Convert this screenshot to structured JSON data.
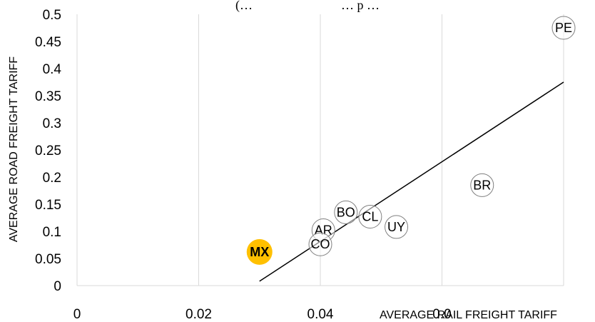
{
  "chart_data": {
    "type": "scatter",
    "title_fragment": "(… ",
    "title_fragment_right": "… p …",
    "xlabel": "AVERAGE RAIL FREIGHT TARIFF",
    "ylabel": "AVERAGE ROAD FREIGHT TARIFF",
    "xlim": [
      0,
      0.08
    ],
    "ylim": [
      0,
      0.5
    ],
    "x_ticks": [
      "0",
      "0.02",
      "0.04",
      "0.0"
    ],
    "y_ticks": [
      "0",
      "0.05",
      "0.1",
      "0.15",
      "0.2",
      "0.25",
      "0.3",
      "0.35",
      "0.4",
      "0.45",
      "0.5"
    ],
    "grid": "vertical",
    "points": [
      {
        "label": "PE",
        "x": 0.08,
        "y": 0.475
      },
      {
        "label": "BR",
        "x": 0.0666,
        "y": 0.185
      },
      {
        "label": "BO",
        "x": 0.0442,
        "y": 0.135
      },
      {
        "label": "CL",
        "x": 0.0482,
        "y": 0.127
      },
      {
        "label": "UY",
        "x": 0.0525,
        "y": 0.108
      },
      {
        "label": "AR",
        "x": 0.0405,
        "y": 0.102
      },
      {
        "label": "CO",
        "x": 0.04,
        "y": 0.076
      },
      {
        "label": "MX",
        "x": 0.03,
        "y": 0.062,
        "highlight": true
      }
    ],
    "trendline": {
      "x": [
        0.03,
        0.08
      ],
      "y": [
        0.008,
        0.375
      ]
    },
    "colors": {
      "highlight_fill": "#FFC000",
      "marker_stroke": "#7F7F7F",
      "grid": "#D9D9D9",
      "trendline": "#000000"
    }
  }
}
